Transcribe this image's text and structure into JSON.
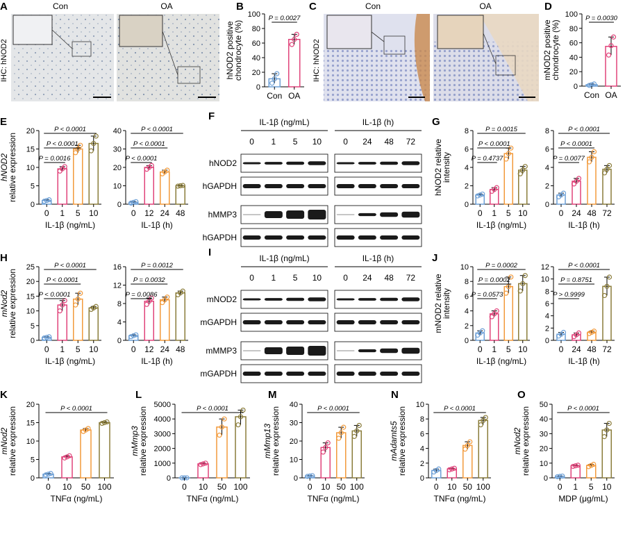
{
  "colors": {
    "c0": "#6c9fd6",
    "c1": "#e0437a",
    "c2": "#f29a3b",
    "c3": "#8a7c3a",
    "blotBg": "#ffffff",
    "band": "#1a1a1a"
  },
  "ihc": {
    "A": {
      "letter": "A",
      "side": "IHC: hNOD2",
      "left": "Con",
      "right": "OA"
    },
    "C": {
      "letter": "C",
      "side": "IHC: hNOD2",
      "left": "Con",
      "right": "OA"
    }
  },
  "blots": {
    "F": {
      "letter": "F",
      "groups": [
        {
          "title": "IL-1β (ng/mL)",
          "lanes": [
            "0",
            "1",
            "5",
            "10"
          ]
        },
        {
          "title": "IL-1β (h)",
          "lanes": [
            "0",
            "24",
            "48",
            "72"
          ]
        }
      ],
      "rows": [
        "hNOD2",
        "hGAPDH",
        "hMMP3",
        "hGAPDH"
      ]
    },
    "I": {
      "letter": "I",
      "groups": [
        {
          "title": "IL-1β (ng/mL)",
          "lanes": [
            "0",
            "1",
            "5",
            "10"
          ]
        },
        {
          "title": "IL-1β (h)",
          "lanes": [
            "0",
            "24",
            "48",
            "72"
          ]
        }
      ],
      "rows": [
        "mNOD2",
        "mGAPDH",
        "mMMP3",
        "mGAPDH"
      ]
    }
  },
  "chart_data": [
    {
      "panel": "B",
      "type": "bar",
      "ylabel": "hNOD2 positive chondrocyte (%)",
      "ylim": [
        0,
        100
      ],
      "ticks": [
        0,
        20,
        40,
        60,
        80,
        100
      ],
      "categories": [
        "Con",
        "OA"
      ],
      "values": [
        11,
        65
      ],
      "points": [
        [
          5,
          11,
          18
        ],
        [
          58,
          65,
          72
        ]
      ],
      "annotations": [
        {
          "label": "P = 0.0027",
          "from": 0,
          "to": 1
        }
      ]
    },
    {
      "panel": "D",
      "type": "bar",
      "ylabel": "mNOD2 positive chondrocyte (%)",
      "ylim": [
        0,
        100
      ],
      "ticks": [
        0,
        20,
        40,
        60,
        80,
        100
      ],
      "categories": [
        "Con",
        "OA"
      ],
      "values": [
        2,
        55
      ],
      "points": [
        [
          1,
          2,
          3
        ],
        [
          43,
          56,
          68
        ]
      ],
      "annotations": [
        {
          "label": "P = 0.0030",
          "from": 0,
          "to": 1
        }
      ]
    },
    {
      "panel": "E",
      "type": "bar",
      "ylabel": "hNOD2 relative expression",
      "ylabel_italic": "hNOD2",
      "ylabel_rest": "relative expression",
      "xlabel": "IL-1β (ng/mL)",
      "ylim": [
        0,
        20
      ],
      "ticks": [
        0,
        5,
        10,
        15,
        20
      ],
      "categories": [
        "0",
        "1",
        "5",
        "10"
      ],
      "values": [
        1,
        9.6,
        15,
        16.5
      ],
      "points": [
        [
          0.8,
          1,
          1.2
        ],
        [
          9,
          9.6,
          10.2
        ],
        [
          14,
          15,
          16
        ],
        [
          14.5,
          16.5,
          18.5
        ]
      ],
      "annotations": [
        {
          "label": "P = 0.0016",
          "from": 0,
          "to": 1
        },
        {
          "label": "P < 0.0001",
          "from": 0,
          "to": 2
        },
        {
          "label": "P < 0.0001",
          "from": 0,
          "to": 3
        }
      ]
    },
    {
      "panel": "E2",
      "type": "bar",
      "xlabel": "IL-1β (h)",
      "ylim": [
        0,
        40
      ],
      "ticks": [
        0,
        10,
        20,
        30,
        40
      ],
      "categories": [
        "0",
        "12",
        "24",
        "48"
      ],
      "values": [
        1,
        20,
        17.5,
        10
      ],
      "points": [
        [
          0.6,
          1,
          1.4
        ],
        [
          19,
          20,
          21
        ],
        [
          16.5,
          17.5,
          18.5
        ],
        [
          9.8,
          10,
          10.2
        ]
      ],
      "annotations": [
        {
          "label": "P < 0.0001",
          "from": 0,
          "to": 1
        },
        {
          "label": "P < 0.0001",
          "from": 0,
          "to": 2
        },
        {
          "label": "P < 0.0001",
          "from": 0,
          "to": 3
        }
      ]
    },
    {
      "panel": "G",
      "type": "bar",
      "ylabel": "hNOD2 relative intensity",
      "ylim": [
        0,
        8
      ],
      "ticks": [
        0,
        2,
        4,
        6,
        8
      ],
      "categories": [
        "0",
        "1",
        "5",
        "10"
      ],
      "xlabel": "IL-1β (ng/mL)",
      "values": [
        1,
        1.6,
        5.5,
        3.7
      ],
      "points": [
        [
          0.9,
          1,
          1.1
        ],
        [
          1.4,
          1.6,
          1.8
        ],
        [
          4.9,
          5.5,
          6.1
        ],
        [
          3.3,
          3.7,
          4.1
        ]
      ],
      "annotations": [
        {
          "label": "P = 0.4737",
          "from": 0,
          "to": 1
        },
        {
          "label": "P < 0.0001",
          "from": 0,
          "to": 2
        },
        {
          "label": "P = 0.0015",
          "from": 0,
          "to": 3
        }
      ]
    },
    {
      "panel": "G2",
      "type": "bar",
      "ylim": [
        0,
        8
      ],
      "ticks": [
        0,
        2,
        4,
        6,
        8
      ],
      "categories": [
        "0",
        "24",
        "48",
        "72"
      ],
      "xlabel": "IL-1β (h)",
      "values": [
        1,
        2.5,
        5.1,
        3.8
      ],
      "points": [
        [
          0.8,
          1,
          1.2
        ],
        [
          2.2,
          2.5,
          2.8
        ],
        [
          4.6,
          5.1,
          5.7
        ],
        [
          3.4,
          3.8,
          4.2
        ]
      ],
      "annotations": [
        {
          "label": "P = 0.0077",
          "from": 0,
          "to": 1
        },
        {
          "label": "P < 0.0001",
          "from": 0,
          "to": 2
        },
        {
          "label": "P < 0.0001",
          "from": 0,
          "to": 3
        }
      ]
    },
    {
      "panel": "H",
      "type": "bar",
      "ylabel": "mNod2 relative expression",
      "ylabel_italic": "mNod2",
      "ylabel_rest": "relative expression",
      "xlabel": "IL-1β (ng/mL)",
      "ylim": [
        0,
        25
      ],
      "ticks": [
        0,
        5,
        10,
        15,
        20,
        25
      ],
      "categories": [
        "0",
        "1",
        "5",
        "10"
      ],
      "values": [
        1,
        12,
        14,
        11
      ],
      "points": [
        [
          0.8,
          1,
          1.2
        ],
        [
          10,
          12,
          13.5
        ],
        [
          12,
          14,
          16
        ],
        [
          10.5,
          11,
          11.5
        ]
      ],
      "annotations": [
        {
          "label": "P < 0.0001",
          "from": 0,
          "to": 1
        },
        {
          "label": "P < 0.0001",
          "from": 0,
          "to": 2
        },
        {
          "label": "P < 0.0001",
          "from": 0,
          "to": 3
        }
      ]
    },
    {
      "panel": "H2",
      "type": "bar",
      "xlabel": "IL-1β (h)",
      "ylim": [
        0,
        16
      ],
      "ticks": [
        0,
        4,
        8,
        12,
        16
      ],
      "categories": [
        "0",
        "12",
        "24",
        "48"
      ],
      "values": [
        1,
        8.5,
        8.8,
        10.3
      ],
      "points": [
        [
          0.8,
          1,
          1.2
        ],
        [
          7.8,
          8.5,
          9.2
        ],
        [
          8.2,
          8.8,
          9.4
        ],
        [
          9.9,
          10.3,
          10.7
        ]
      ],
      "annotations": [
        {
          "label": "P = 0.0086",
          "from": 0,
          "to": 1
        },
        {
          "label": "P = 0.0032",
          "from": 0,
          "to": 2
        },
        {
          "label": "P = 0.0012",
          "from": 0,
          "to": 3
        }
      ]
    },
    {
      "panel": "J",
      "type": "bar",
      "ylabel": "mNOD2 relative intensity",
      "ylim": [
        0,
        10
      ],
      "ticks": [
        0,
        2,
        4,
        6,
        8,
        10
      ],
      "categories": [
        "0",
        "1",
        "5",
        "10"
      ],
      "xlabel": "IL-1β (ng/mL)",
      "values": [
        1,
        3.6,
        7.3,
        7.7
      ],
      "points": [
        [
          0.7,
          1,
          1.3
        ],
        [
          3.2,
          3.6,
          4
        ],
        [
          6.4,
          7.3,
          8.6
        ],
        [
          6.7,
          7.7,
          8.8
        ]
      ],
      "annotations": [
        {
          "label": "P = 0.0573",
          "from": 0,
          "to": 1
        },
        {
          "label": "P = 0.0002",
          "from": 0,
          "to": 2
        },
        {
          "label": "P = 0.0002",
          "from": 0,
          "to": 3
        }
      ]
    },
    {
      "panel": "J2",
      "type": "bar",
      "ylim": [
        0,
        12
      ],
      "ticks": [
        0,
        2,
        4,
        6,
        8,
        10,
        12
      ],
      "categories": [
        "0",
        "24",
        "48",
        "72"
      ],
      "xlabel": "IL-1β (h)",
      "values": [
        1,
        0.9,
        1.3,
        8.8
      ],
      "points": [
        [
          0.7,
          1,
          1.3
        ],
        [
          0.6,
          0.9,
          1.2
        ],
        [
          1.1,
          1.3,
          1.5
        ],
        [
          7.3,
          8.8,
          10.3
        ]
      ],
      "annotations": [
        {
          "label": "P > 0.9999",
          "from": 0,
          "to": 1
        },
        {
          "label": "P = 0.8751",
          "from": 0,
          "to": 2
        },
        {
          "label": "P < 0.0001",
          "from": 0,
          "to": 3
        }
      ]
    },
    {
      "panel": "K",
      "type": "bar",
      "ylabel": "mNod2 relative expression",
      "ylabel_italic": "mNod2",
      "ylabel_rest": "relative expression",
      "xlabel": "TNFα (ng/mL)",
      "ylim": [
        0,
        20
      ],
      "ticks": [
        0,
        5,
        10,
        15,
        20
      ],
      "categories": [
        "0",
        "10",
        "50",
        "100"
      ],
      "values": [
        1,
        5.7,
        13,
        15
      ],
      "points": [
        [
          0.8,
          1,
          1.2
        ],
        [
          5.4,
          5.7,
          6
        ],
        [
          12.6,
          13,
          13.4
        ],
        [
          14.8,
          15,
          15.2
        ]
      ],
      "annotations": [
        {
          "label": "P < 0.0001",
          "from": 0,
          "to": 3
        }
      ]
    },
    {
      "panel": "L",
      "type": "bar",
      "ylabel": "mMmp3 relative expression",
      "ylabel_italic": "mMmp3",
      "ylabel_rest": "relative expression",
      "xlabel": "TNFα (ng/mL)",
      "ylim": [
        0,
        5000
      ],
      "ticks": [
        0,
        1000,
        2000,
        3000,
        4000,
        5000
      ],
      "categories": [
        "0",
        "10",
        "50",
        "100"
      ],
      "values": [
        1,
        950,
        3450,
        4150
      ],
      "points": [
        [
          0,
          1,
          2
        ],
        [
          900,
          950,
          1000
        ],
        [
          2900,
          3450,
          4000
        ],
        [
          3600,
          4150,
          4600
        ]
      ],
      "annotations": [
        {
          "label": "P < 0.0001",
          "from": 0,
          "to": 3
        }
      ]
    },
    {
      "panel": "M",
      "type": "bar",
      "ylabel": "mMmp13 relative expression",
      "ylabel_italic": "mMmp13",
      "ylabel_rest": "relative expression",
      "xlabel": "TNFα (ng/mL)",
      "ylim": [
        0,
        40
      ],
      "ticks": [
        0,
        10,
        20,
        30,
        40
      ],
      "categories": [
        "0",
        "10",
        "50",
        "100"
      ],
      "values": [
        1,
        16.5,
        24.5,
        25.5
      ],
      "points": [
        [
          0.8,
          1,
          1.2
        ],
        [
          14,
          16.5,
          19
        ],
        [
          21.5,
          24.5,
          27.5
        ],
        [
          22.5,
          25.5,
          28.5
        ]
      ],
      "annotations": [
        {
          "label": "P < 0.0001",
          "from": 0,
          "to": 3
        }
      ]
    },
    {
      "panel": "N",
      "type": "bar",
      "ylabel": "mAdamts5 relative expression",
      "ylabel_italic": "mAdamts5",
      "ylabel_rest": "relative expression",
      "xlabel": "TNFα (ng/mL)",
      "ylim": [
        0,
        10
      ],
      "ticks": [
        0,
        2,
        4,
        6,
        8,
        10
      ],
      "categories": [
        "0",
        "10",
        "50",
        "100"
      ],
      "values": [
        1,
        1.2,
        4.4,
        7.8
      ],
      "points": [
        [
          0.8,
          1,
          1.2
        ],
        [
          1.1,
          1.2,
          1.3
        ],
        [
          3.9,
          4.4,
          4.9
        ],
        [
          7.2,
          7.8,
          8.2
        ]
      ],
      "annotations": [
        {
          "label": "P < 0.0001",
          "from": 0,
          "to": 3
        }
      ]
    },
    {
      "panel": "O",
      "type": "bar",
      "ylabel": "mNod2 relative expression",
      "ylabel_italic": "mNod2",
      "ylabel_rest": "relative expression",
      "xlabel": "MDP (μg/mL)",
      "ylim": [
        0,
        50
      ],
      "ticks": [
        0,
        10,
        20,
        30,
        40,
        50
      ],
      "categories": [
        "0",
        "1",
        "5",
        "10"
      ],
      "values": [
        1,
        8.2,
        8.4,
        32.5
      ],
      "points": [
        [
          0.8,
          1,
          1.2
        ],
        [
          7.8,
          8.2,
          8.6
        ],
        [
          7.6,
          8.4,
          9.2
        ],
        [
          28,
          32.5,
          37
        ]
      ],
      "annotations": [
        {
          "label": "P < 0.0001",
          "from": 0,
          "to": 3
        }
      ]
    }
  ]
}
